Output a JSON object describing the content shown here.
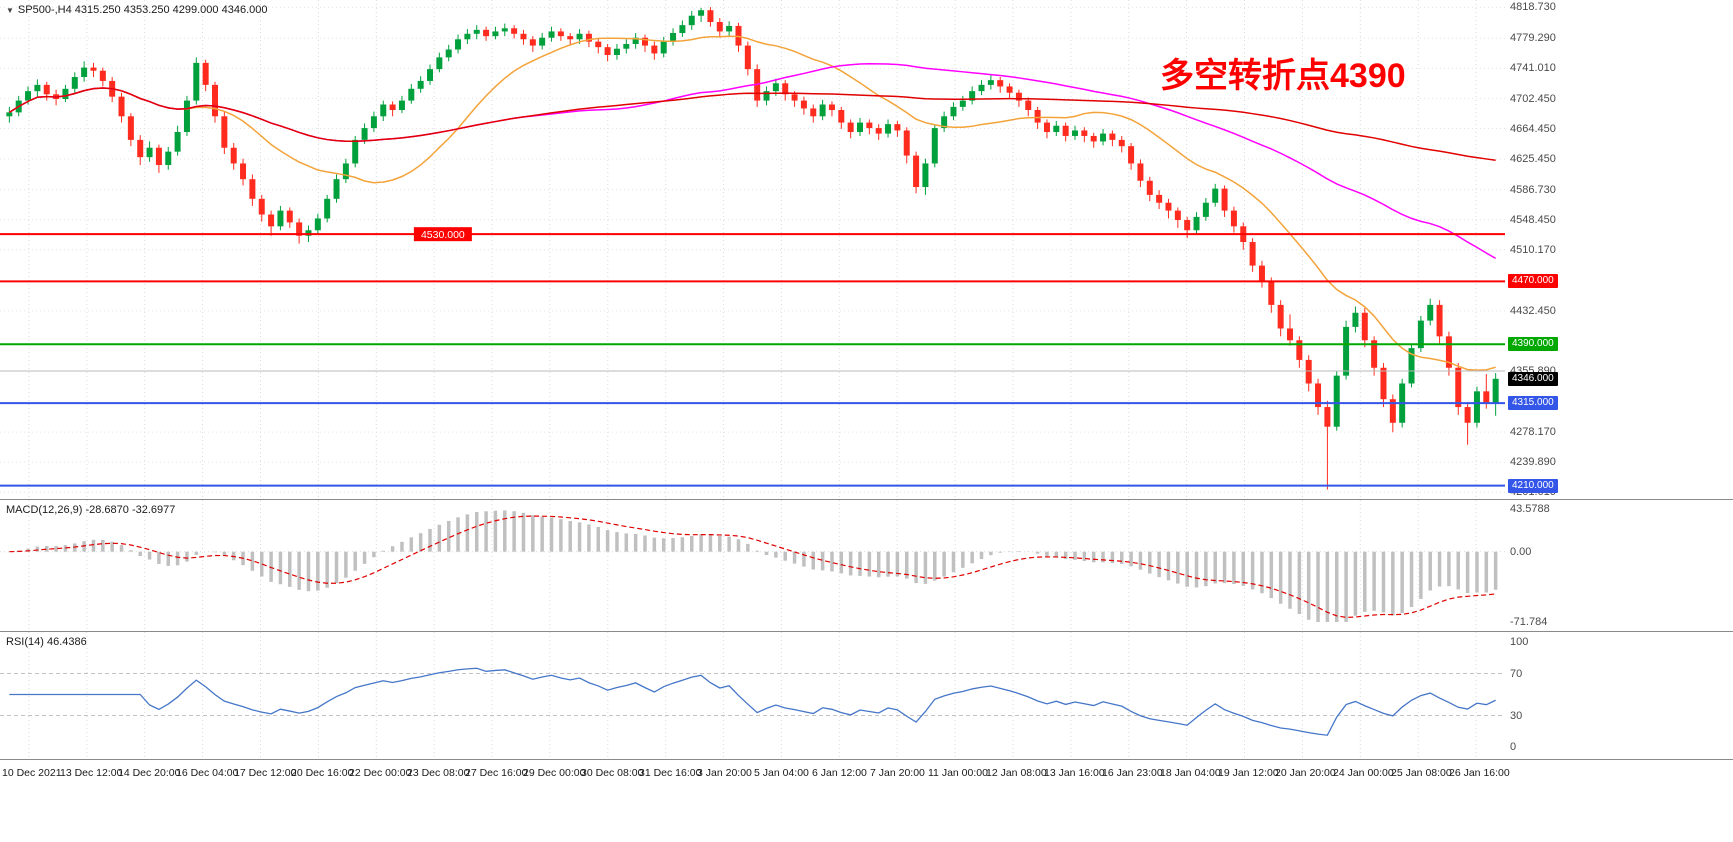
{
  "header": {
    "symbol_title": "SP500-,H4 4315.250 4353.250 4299.000 4346.000",
    "dropdown_icon": "triangle-down"
  },
  "annotation": {
    "text": "多空转折点4390",
    "color": "#ff0000"
  },
  "chart_data": {
    "type": "candlestick",
    "symbol": "SP500-",
    "timeframe": "H4",
    "ohlc_display": {
      "open": "4315.250",
      "high": "4353.250",
      "low": "4299.000",
      "close": "4346.000"
    },
    "price_range": [
      4193,
      4828
    ],
    "y_axis_labels": [
      4818.73,
      4779.29,
      4741.01,
      4702.45,
      4664.45,
      4625.45,
      4586.73,
      4548.45,
      4510.17,
      4432.45,
      4355.89,
      4278.17,
      4239.89,
      4201.61
    ],
    "x_labels": [
      "10 Dec 2021",
      "13 Dec 12:00",
      "14 Dec 20:00",
      "16 Dec 04:00",
      "17 Dec 12:00",
      "20 Dec 16:00",
      "22 Dec 00:00",
      "23 Dec 08:00",
      "27 Dec 16:00",
      "29 Dec 00:00",
      "30 Dec 08:00",
      "31 Dec 16:00",
      "3 Jan 20:00",
      "5 Jan 04:00",
      "6 Jan 12:00",
      "7 Jan 20:00",
      "11 Jan 00:00",
      "12 Jan 08:00",
      "13 Jan 16:00",
      "16 Jan 23:00",
      "18 Jan 04:00",
      "19 Jan 12:00",
      "20 Jan 20:00",
      "24 Jan 00:00",
      "25 Jan 08:00",
      "26 Jan 16:00"
    ],
    "style": {
      "bull": "#00a13c",
      "bear": "#ff2b1e",
      "grid": "#d9d9d9",
      "hist": "#c0c0c0",
      "signal": "#e00000",
      "rsi_line": "#4576c8",
      "level_dash": "#c4c4c4"
    },
    "moving_averages": [
      {
        "name": "ma-fast",
        "window": 18,
        "color": "#f3a33a"
      },
      {
        "name": "ma-mid",
        "window": 55,
        "color": "#ff00ff"
      },
      {
        "name": "ma-slow",
        "window": 130,
        "color": "#e00000"
      }
    ],
    "hlines": [
      {
        "price": 4530,
        "label": "4530.000",
        "color": "#ff0000",
        "width": 2,
        "label_pos": "line",
        "label_x": 0.275
      },
      {
        "price": 4470,
        "label": "4470.000",
        "color": "#ff0000",
        "width": 2,
        "label_pos": "axis"
      },
      {
        "price": 4390,
        "label": "4390.000",
        "color": "#00a800",
        "width": 2,
        "label_pos": "axis"
      },
      {
        "price": 4355.89,
        "label": "",
        "color": "#b8b8b8",
        "width": 1,
        "label_pos": "none"
      },
      {
        "price": 4315,
        "label": "4315.000",
        "color": "#3355e8",
        "width": 2,
        "label_pos": "axis"
      },
      {
        "price": 4210,
        "label": "4210.000",
        "color": "#3355e8",
        "width": 2,
        "label_pos": "axis"
      }
    ],
    "price_tag": {
      "label": "4346.000",
      "price": 4346,
      "bg": "#000000",
      "fg": "#ffffff"
    },
    "candles": [
      [
        4680,
        4692,
        4672,
        4685
      ],
      [
        4685,
        4706,
        4680,
        4700
      ],
      [
        4700,
        4718,
        4695,
        4712
      ],
      [
        4712,
        4727,
        4705,
        4720
      ],
      [
        4720,
        4724,
        4700,
        4708
      ],
      [
        4708,
        4714,
        4694,
        4702
      ],
      [
        4702,
        4720,
        4698,
        4715
      ],
      [
        4715,
        4736,
        4710,
        4730
      ],
      [
        4730,
        4750,
        4724,
        4742
      ],
      [
        4742,
        4748,
        4730,
        4738
      ],
      [
        4738,
        4742,
        4718,
        4725
      ],
      [
        4725,
        4730,
        4698,
        4705
      ],
      [
        4705,
        4710,
        4672,
        4680
      ],
      [
        4680,
        4684,
        4642,
        4650
      ],
      [
        4650,
        4656,
        4618,
        4628
      ],
      [
        4628,
        4648,
        4622,
        4640
      ],
      [
        4640,
        4644,
        4608,
        4618
      ],
      [
        4618,
        4641,
        4612,
        4635
      ],
      [
        4635,
        4668,
        4630,
        4660
      ],
      [
        4660,
        4706,
        4655,
        4700
      ],
      [
        4700,
        4755,
        4695,
        4748
      ],
      [
        4748,
        4752,
        4712,
        4720
      ],
      [
        4720,
        4724,
        4672,
        4680
      ],
      [
        4680,
        4686,
        4632,
        4640
      ],
      [
        4640,
        4646,
        4612,
        4620
      ],
      [
        4620,
        4626,
        4592,
        4600
      ],
      [
        4600,
        4606,
        4566,
        4575
      ],
      [
        4575,
        4580,
        4546,
        4555
      ],
      [
        4555,
        4560,
        4528,
        4540
      ],
      [
        4540,
        4566,
        4535,
        4560
      ],
      [
        4560,
        4564,
        4538,
        4545
      ],
      [
        4545,
        4550,
        4518,
        4528
      ],
      [
        4528,
        4541,
        4520,
        4535
      ],
      [
        4535,
        4556,
        4530,
        4550
      ],
      [
        4550,
        4580,
        4545,
        4575
      ],
      [
        4575,
        4606,
        4570,
        4600
      ],
      [
        4600,
        4626,
        4595,
        4620
      ],
      [
        4620,
        4655,
        4615,
        4650
      ],
      [
        4650,
        4671,
        4645,
        4665
      ],
      [
        4665,
        4686,
        4660,
        4680
      ],
      [
        4680,
        4700,
        4674,
        4695
      ],
      [
        4695,
        4699,
        4680,
        4688
      ],
      [
        4688,
        4706,
        4684,
        4700
      ],
      [
        4700,
        4721,
        4696,
        4715
      ],
      [
        4715,
        4731,
        4710,
        4725
      ],
      [
        4725,
        4746,
        4720,
        4740
      ],
      [
        4740,
        4761,
        4736,
        4755
      ],
      [
        4755,
        4771,
        4750,
        4765
      ],
      [
        4765,
        4784,
        4760,
        4778
      ],
      [
        4778,
        4791,
        4772,
        4785
      ],
      [
        4785,
        4796,
        4778,
        4790
      ],
      [
        4790,
        4794,
        4776,
        4782
      ],
      [
        4782,
        4794,
        4778,
        4788
      ],
      [
        4788,
        4798,
        4782,
        4792
      ],
      [
        4792,
        4796,
        4779,
        4785
      ],
      [
        4785,
        4790,
        4771,
        4778
      ],
      [
        4778,
        4782,
        4762,
        4770
      ],
      [
        4770,
        4786,
        4765,
        4780
      ],
      [
        4780,
        4794,
        4775,
        4788
      ],
      [
        4788,
        4792,
        4776,
        4782
      ],
      [
        4782,
        4786,
        4770,
        4778
      ],
      [
        4778,
        4791,
        4772,
        4785
      ],
      [
        4785,
        4789,
        4768,
        4775
      ],
      [
        4775,
        4780,
        4760,
        4768
      ],
      [
        4768,
        4772,
        4750,
        4758
      ],
      [
        4758,
        4772,
        4752,
        4766
      ],
      [
        4766,
        4778,
        4760,
        4772
      ],
      [
        4772,
        4786,
        4766,
        4780
      ],
      [
        4780,
        4784,
        4762,
        4770
      ],
      [
        4770,
        4775,
        4752,
        4760
      ],
      [
        4760,
        4781,
        4755,
        4775
      ],
      [
        4775,
        4792,
        4770,
        4786
      ],
      [
        4786,
        4802,
        4781,
        4796
      ],
      [
        4796,
        4814,
        4790,
        4808
      ],
      [
        4808,
        4818,
        4800,
        4815
      ],
      [
        4815,
        4819,
        4794,
        4800
      ],
      [
        4800,
        4805,
        4780,
        4788
      ],
      [
        4788,
        4801,
        4782,
        4795
      ],
      [
        4795,
        4799,
        4762,
        4770
      ],
      [
        4770,
        4775,
        4732,
        4740
      ],
      [
        4740,
        4746,
        4692,
        4700
      ],
      [
        4700,
        4718,
        4694,
        4712
      ],
      [
        4712,
        4728,
        4706,
        4722
      ],
      [
        4722,
        4726,
        4700,
        4708
      ],
      [
        4708,
        4712,
        4692,
        4700
      ],
      [
        4700,
        4705,
        4682,
        4690
      ],
      [
        4690,
        4695,
        4672,
        4680
      ],
      [
        4680,
        4701,
        4675,
        4695
      ],
      [
        4695,
        4699,
        4680,
        4688
      ],
      [
        4688,
        4692,
        4664,
        4672
      ],
      [
        4672,
        4676,
        4652,
        4660
      ],
      [
        4660,
        4678,
        4655,
        4672
      ],
      [
        4672,
        4676,
        4657,
        4665
      ],
      [
        4665,
        4670,
        4650,
        4658
      ],
      [
        4658,
        4676,
        4653,
        4670
      ],
      [
        4670,
        4674,
        4654,
        4662
      ],
      [
        4662,
        4666,
        4620,
        4630
      ],
      [
        4630,
        4635,
        4582,
        4590
      ],
      [
        4590,
        4626,
        4580,
        4620
      ],
      [
        4620,
        4670,
        4615,
        4665
      ],
      [
        4665,
        4686,
        4660,
        4680
      ],
      [
        4680,
        4698,
        4675,
        4692
      ],
      [
        4692,
        4706,
        4687,
        4700
      ],
      [
        4700,
        4718,
        4695,
        4712
      ],
      [
        4712,
        4726,
        4707,
        4720
      ],
      [
        4720,
        4732,
        4714,
        4726
      ],
      [
        4726,
        4730,
        4710,
        4718
      ],
      [
        4718,
        4722,
        4702,
        4710
      ],
      [
        4710,
        4714,
        4692,
        4700
      ],
      [
        4700,
        4704,
        4680,
        4688
      ],
      [
        4688,
        4692,
        4664,
        4672
      ],
      [
        4672,
        4676,
        4652,
        4660
      ],
      [
        4660,
        4674,
        4655,
        4668
      ],
      [
        4668,
        4672,
        4648,
        4655
      ],
      [
        4655,
        4668,
        4650,
        4662
      ],
      [
        4662,
        4666,
        4647,
        4655
      ],
      [
        4655,
        4659,
        4640,
        4648
      ],
      [
        4648,
        4664,
        4643,
        4658
      ],
      [
        4658,
        4662,
        4642,
        4650
      ],
      [
        4650,
        4655,
        4634,
        4642
      ],
      [
        4642,
        4646,
        4612,
        4620
      ],
      [
        4620,
        4625,
        4590,
        4598
      ],
      [
        4598,
        4603,
        4572,
        4580
      ],
      [
        4580,
        4586,
        4562,
        4570
      ],
      [
        4570,
        4575,
        4550,
        4560
      ],
      [
        4560,
        4564,
        4538,
        4548
      ],
      [
        4548,
        4552,
        4525,
        4535
      ],
      [
        4535,
        4558,
        4530,
        4552
      ],
      [
        4552,
        4576,
        4547,
        4570
      ],
      [
        4570,
        4594,
        4565,
        4588
      ],
      [
        4588,
        4592,
        4552,
        4560
      ],
      [
        4560,
        4565,
        4532,
        4540
      ],
      [
        4540,
        4545,
        4510,
        4520
      ],
      [
        4520,
        4525,
        4482,
        4490
      ],
      [
        4490,
        4496,
        4462,
        4470
      ],
      [
        4470,
        4475,
        4430,
        4440
      ],
      [
        4440,
        4446,
        4400,
        4410
      ],
      [
        4410,
        4428,
        4388,
        4395
      ],
      [
        4395,
        4400,
        4360,
        4370
      ],
      [
        4370,
        4376,
        4330,
        4340
      ],
      [
        4340,
        4346,
        4300,
        4310
      ],
      [
        4310,
        4318,
        4205,
        4285
      ],
      [
        4285,
        4356,
        4280,
        4350
      ],
      [
        4350,
        4420,
        4345,
        4412
      ],
      [
        4412,
        4438,
        4405,
        4430
      ],
      [
        4430,
        4436,
        4386,
        4395
      ],
      [
        4395,
        4400,
        4350,
        4360
      ],
      [
        4360,
        4366,
        4310,
        4320
      ],
      [
        4320,
        4326,
        4278,
        4290
      ],
      [
        4290,
        4346,
        4284,
        4340
      ],
      [
        4340,
        4390,
        4335,
        4385
      ],
      [
        4385,
        4426,
        4380,
        4420
      ],
      [
        4420,
        4448,
        4414,
        4440
      ],
      [
        4440,
        4446,
        4390,
        4400
      ],
      [
        4400,
        4406,
        4350,
        4360
      ],
      [
        4360,
        4366,
        4300,
        4310
      ],
      [
        4310,
        4316,
        4262,
        4290
      ],
      [
        4290,
        4336,
        4284,
        4330
      ],
      [
        4330,
        4352,
        4308,
        4315
      ],
      [
        4315.25,
        4353.25,
        4299,
        4346
      ]
    ],
    "macd": {
      "label": "MACD(12,26,9) -28.6870 -32.6977",
      "params": [
        12,
        26,
        9
      ],
      "value": -28.687,
      "signal": -32.6977,
      "axis_labels": [
        {
          "v": 43.5788,
          "text": "43.5788"
        },
        {
          "v": 0,
          "text": "0.00"
        },
        {
          "v": -71.784,
          "text": "-71.784"
        }
      ]
    },
    "rsi": {
      "label": "RSI(14) 46.4386",
      "period": 14,
      "value": 46.4386,
      "levels": [
        {
          "v": 100,
          "text": "100",
          "dashed": false
        },
        {
          "v": 70,
          "text": "70",
          "dashed": true
        },
        {
          "v": 30,
          "text": "30",
          "dashed": true
        },
        {
          "v": 0,
          "text": "0",
          "dashed": false
        }
      ]
    }
  }
}
